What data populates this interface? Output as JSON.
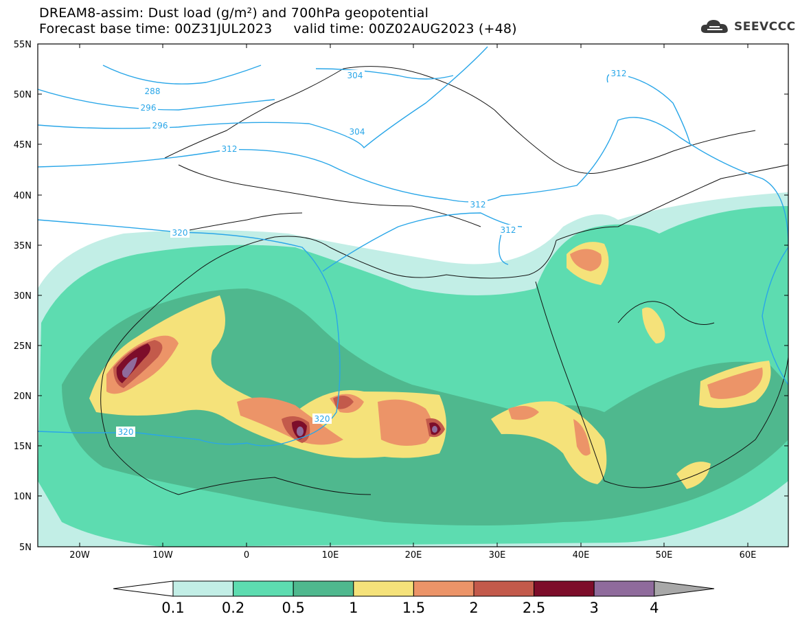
{
  "header": {
    "title_line1": "DREAM8-assim: Dust load (g/m²) and 700hPa geopotential",
    "title_line2": "Forecast base time: 00Z31JUL2023     valid time: 00Z02AUG2023 (+48)"
  },
  "logo": {
    "text": "SEEVCCC",
    "icon": "cloud-icon"
  },
  "map": {
    "lat_labels": [
      "55N",
      "50N",
      "45N",
      "40N",
      "35N",
      "30N",
      "25N",
      "20N",
      "15N",
      "10N",
      "5N"
    ],
    "lon_labels": [
      "20W",
      "10W",
      "0",
      "10E",
      "20E",
      "30E",
      "40E",
      "50E",
      "60E"
    ],
    "contour_labels": [
      "288",
      "296",
      "296",
      "304",
      "304",
      "312",
      "312",
      "312",
      "312",
      "320",
      "320",
      "320"
    ]
  },
  "legend": {
    "labels": [
      "0.1",
      "0.2",
      "0.5",
      "1",
      "1.5",
      "2",
      "2.5",
      "3",
      "4"
    ],
    "colors": [
      "#c2eee6",
      "#5ddcb0",
      "#4fb88e",
      "#f5e27a",
      "#ec9468",
      "#c35a4b",
      "#7d0d2a",
      "#8f6b9c"
    ],
    "end_left_color": "#ffffff",
    "end_right_color": "#a8a8a8"
  },
  "colors": {
    "contour": "#29a6e8",
    "coast": "#111111"
  }
}
